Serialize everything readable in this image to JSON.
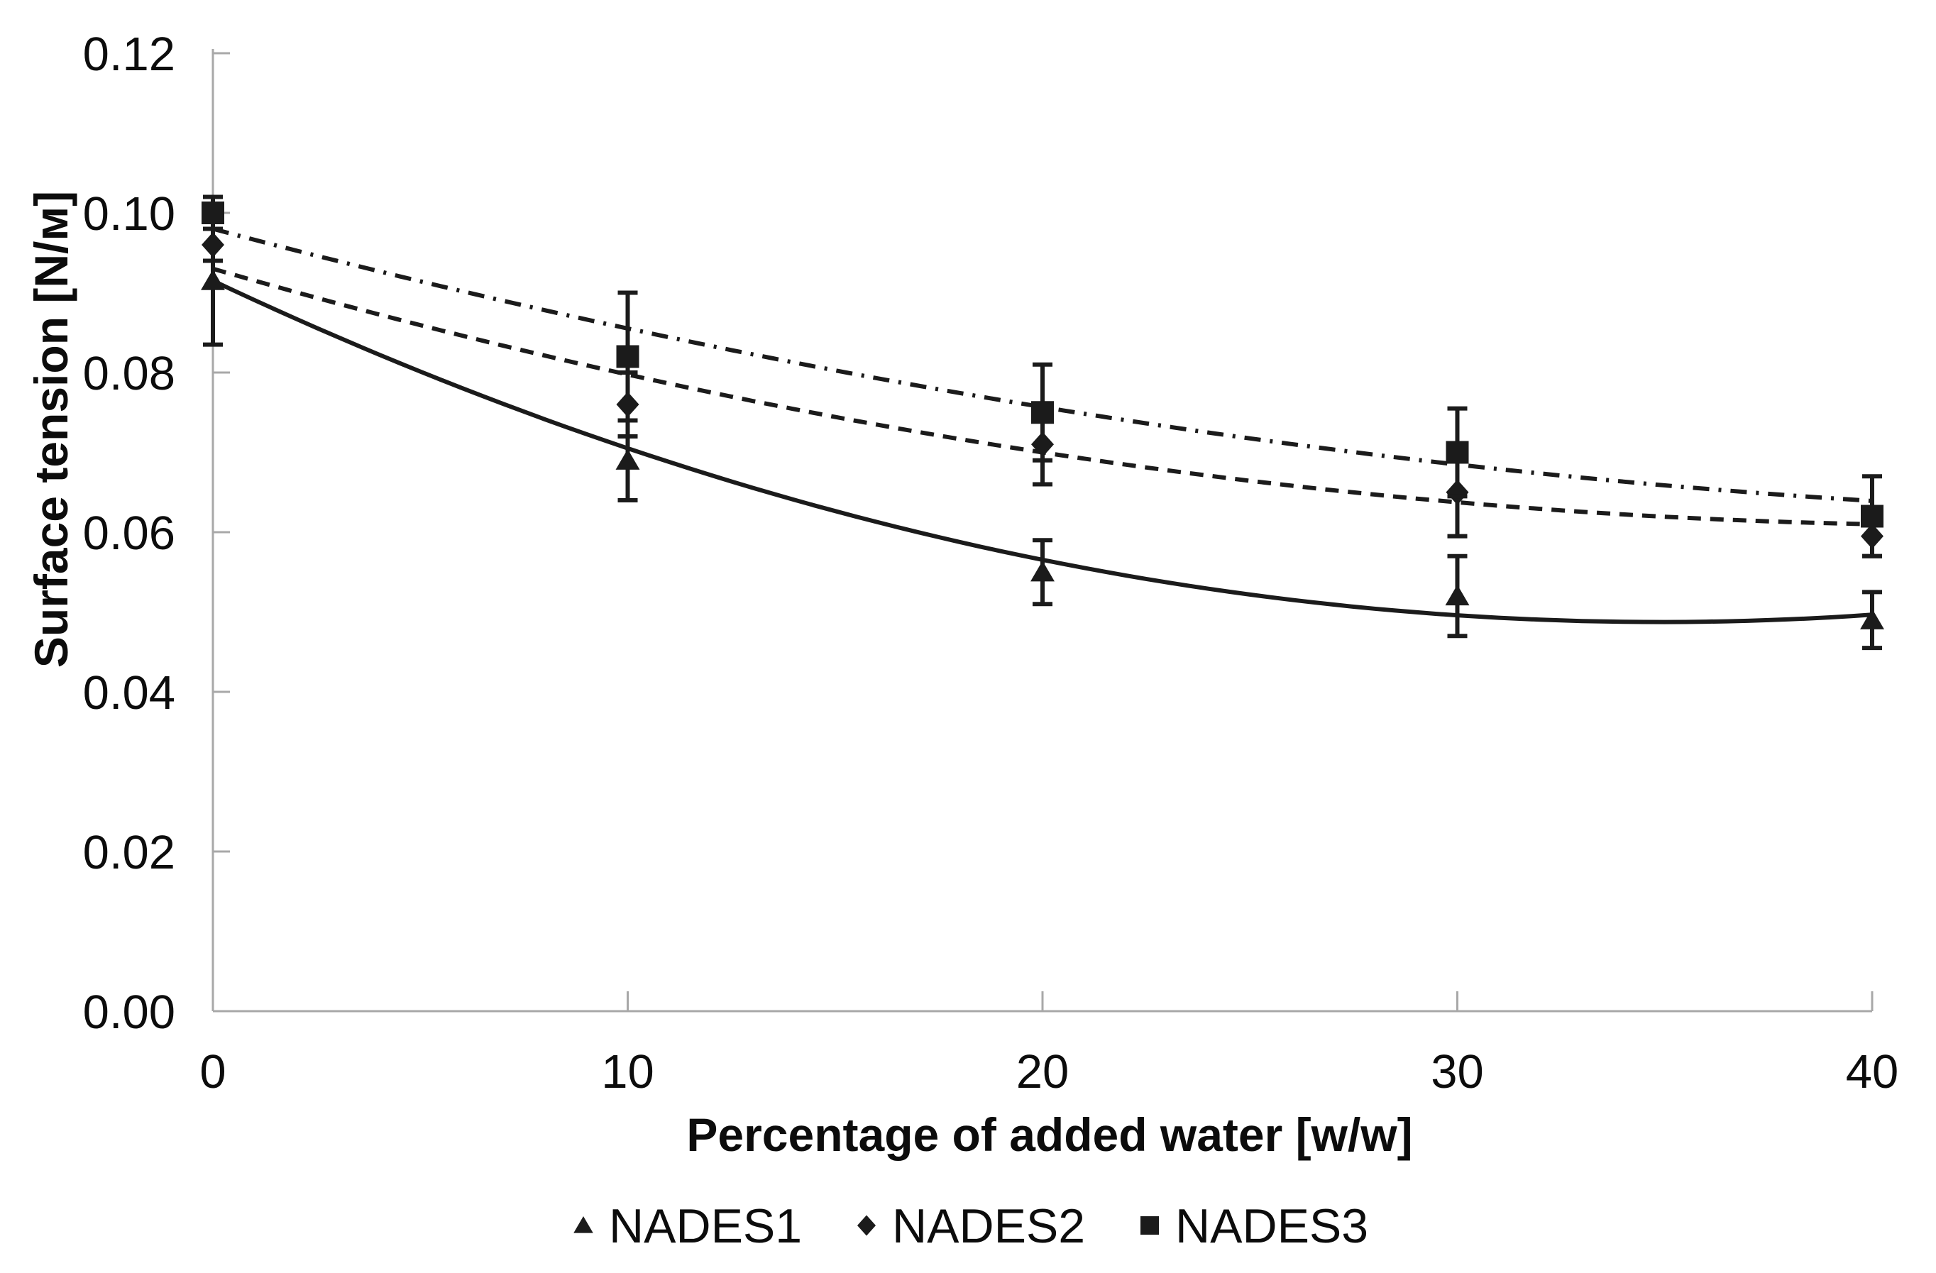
{
  "chart_data": {
    "type": "scatter",
    "title": "",
    "xlabel": "Percentage of added water [w/w]",
    "ylabel": "Surface tension [N/м]",
    "xlim": [
      0,
      40
    ],
    "ylim": [
      0.0,
      0.12
    ],
    "x_ticks": [
      0,
      10,
      20,
      30,
      40
    ],
    "y_tick_labels": [
      "0.00",
      "0.02",
      "0.04",
      "0.06",
      "0.08",
      "0.10",
      "0.12"
    ],
    "grid": false,
    "legend_position": "bottom-center",
    "colors": {
      "ink": "#1b1b1b",
      "axis": "#a8a8a8",
      "text": "#0c0c0c",
      "background": "#ffffff"
    },
    "series": [
      {
        "name": "NADES1",
        "marker": "triangle",
        "line_style": "solid",
        "x": [
          0,
          10,
          20,
          30,
          40
        ],
        "y": [
          0.0915,
          0.069,
          0.055,
          0.052,
          0.049
        ],
        "y_err": [
          0.008,
          0.005,
          0.004,
          0.005,
          0.0035
        ],
        "trendline": {
          "type": "quadratic",
          "a": 0.0915,
          "b": -0.00245,
          "c": 3.51e-05
        }
      },
      {
        "name": "NADES2",
        "marker": "diamond",
        "line_style": "dashed",
        "x": [
          0,
          10,
          20,
          30,
          40
        ],
        "y": [
          0.096,
          0.076,
          0.071,
          0.065,
          0.0595
        ],
        "y_err": [
          0.002,
          0.004,
          0.005,
          0.0055,
          0.0025
        ],
        "trendline": {
          "type": "quadratic",
          "a": 0.093,
          "b": -0.0015,
          "c": 1.75e-05
        }
      },
      {
        "name": "NADES3",
        "marker": "square",
        "line_style": "dash-dot",
        "x": [
          0,
          10,
          20,
          30,
          40
        ],
        "y": [
          0.1,
          0.082,
          0.075,
          0.07,
          0.062
        ],
        "y_err": [
          0.002,
          0.008,
          0.006,
          0.0055,
          0.005
        ],
        "trendline": {
          "type": "quadratic",
          "a": 0.098,
          "b": -0.00138,
          "c": 1.32e-05
        }
      }
    ]
  }
}
